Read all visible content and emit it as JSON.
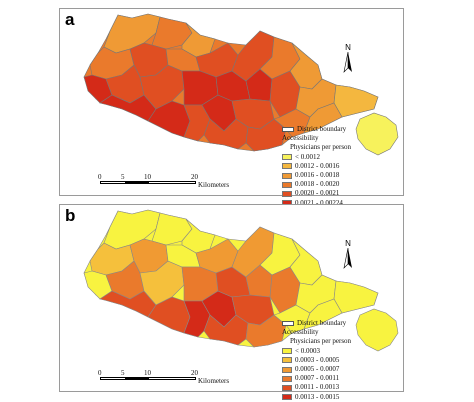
{
  "panels": [
    {
      "letter": "a",
      "legend": {
        "boundary_label": "District boundary",
        "title": "Accessibility",
        "subtitle": "Physicians per person",
        "classes": [
          {
            "label": "< 0.0012",
            "color": "#f7f25c"
          },
          {
            "label": "0.0012 - 0.0016",
            "color": "#f4b73f"
          },
          {
            "label": "0.0016 - 0.0018",
            "color": "#ef9a35"
          },
          {
            "label": "0.0018 - 0.0020",
            "color": "#ea7a2c"
          },
          {
            "label": "0.0020 - 0.0021",
            "color": "#e04f22"
          },
          {
            "label": "0.0021 - 0.00224",
            "color": "#d42a18"
          }
        ]
      },
      "scale": {
        "ticks": [
          "0",
          "5",
          "10",
          "20"
        ],
        "unit": "Kilometers"
      },
      "north": "N"
    },
    {
      "letter": "b",
      "legend": {
        "boundary_label": "District boundary",
        "title": "Accessibility",
        "subtitle": "Physicians per person",
        "classes": [
          {
            "label": "< 0.0003",
            "color": "#f8f340"
          },
          {
            "label": "0.0003 - 0.0005",
            "color": "#f5c03c"
          },
          {
            "label": "0.0005 - 0.0007",
            "color": "#f09a33"
          },
          {
            "label": "0.0007 - 0.0011",
            "color": "#ea7a2c"
          },
          {
            "label": "0.0011 - 0.0013",
            "color": "#e04f22"
          },
          {
            "label": "0.0013 - 0.0015",
            "color": "#d42a18"
          }
        ]
      },
      "scale": {
        "ticks": [
          "0",
          "5",
          "10",
          "20"
        ],
        "unit": "Kilometers"
      },
      "north": "N"
    }
  ]
}
